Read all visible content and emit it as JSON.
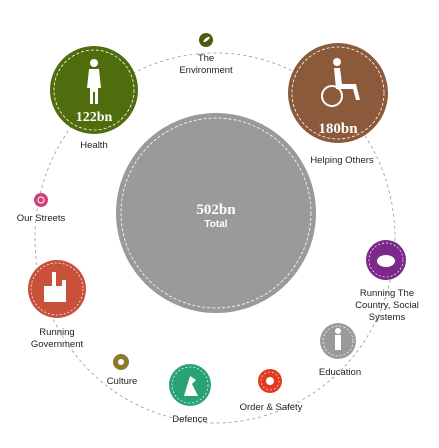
{
  "total": {
    "amount": "502bn",
    "label": "Total",
    "color": "#9a9a9a"
  },
  "categories": [
    {
      "id": "environment",
      "label": "The\nEnvironment",
      "amount": "",
      "color": "#4f5a10",
      "icon": "leaf-icon"
    },
    {
      "id": "health",
      "label": "Health",
      "amount": "122bn",
      "color": "#4f6d0d",
      "icon": "nurse-figure-icon"
    },
    {
      "id": "helping-others",
      "label": "Helping Others",
      "amount": "180bn",
      "color": "#8b5a3a",
      "icon": "wheelchair-icon"
    },
    {
      "id": "our-streets",
      "label": "Our Streets",
      "amount": "",
      "color": "#d0407a",
      "icon": "streetlight-icon"
    },
    {
      "id": "running-the-country",
      "label": "Running The\nCountry, Social\nSystems",
      "amount": "",
      "color": "#7b2a8c",
      "icon": "piggy-bank-icon"
    },
    {
      "id": "running-government",
      "label": "Running\nGovernment",
      "amount": "",
      "color": "#c9513c",
      "icon": "parliament-icon"
    },
    {
      "id": "education",
      "label": "Education",
      "amount": "",
      "color": "#9a9a9a",
      "icon": "graduate-figure-icon"
    },
    {
      "id": "culture",
      "label": "Culture",
      "amount": "",
      "color": "#8b7a2a",
      "icon": "mask-icon"
    },
    {
      "id": "defence",
      "label": "Defence",
      "amount": "",
      "color": "#2aa374",
      "icon": "soldier-icon"
    },
    {
      "id": "order-safety",
      "label": "Order & Safety",
      "amount": "",
      "color": "#e03a22",
      "icon": "badge-icon"
    }
  ]
}
